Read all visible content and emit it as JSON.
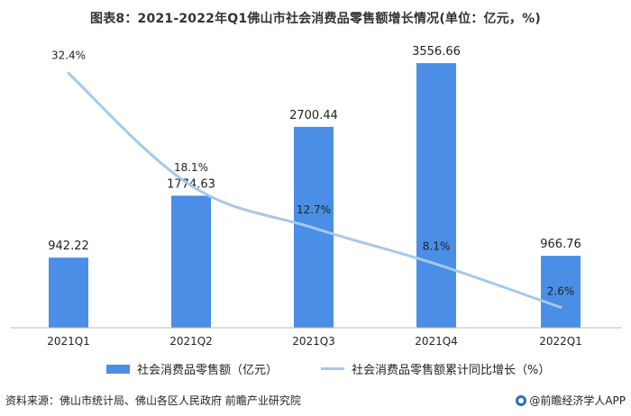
{
  "title": "图表8：2021-2022年Q1佛山市社会消费品零售额增长情况(单位：亿元，%)",
  "footer": {
    "source": "资料来源：佛山市统计局、佛山各区人民政府 前瞻产业研究院",
    "brand": "@前瞻经济学人APP"
  },
  "colors": {
    "bar": "#4a8ee6",
    "line": "#a6c8ea",
    "axis": "#bbbbbb"
  },
  "chart_data": {
    "type": "bar+line",
    "categories": [
      "2021Q1",
      "2021Q2",
      "2021Q3",
      "2021Q4",
      "2022Q1"
    ],
    "series": [
      {
        "name": "社会消费品零售额（亿元）",
        "type": "bar",
        "values": [
          942.22,
          1774.63,
          2700.44,
          3556.66,
          966.76
        ],
        "labels": [
          "942.22",
          "1774.63",
          "2700.44",
          "3556.66",
          "966.76"
        ]
      },
      {
        "name": "社会消费品零售额累计同比增长（%）",
        "type": "line",
        "values": [
          32.4,
          18.1,
          12.7,
          8.1,
          2.6
        ],
        "labels": [
          "32.4%",
          "18.1%",
          "12.7%",
          "8.1%",
          "2.6%"
        ]
      }
    ],
    "bar_ylim": [
      0,
      3800
    ],
    "line_ylim": [
      0,
      36
    ],
    "legend_position": "bottom"
  }
}
